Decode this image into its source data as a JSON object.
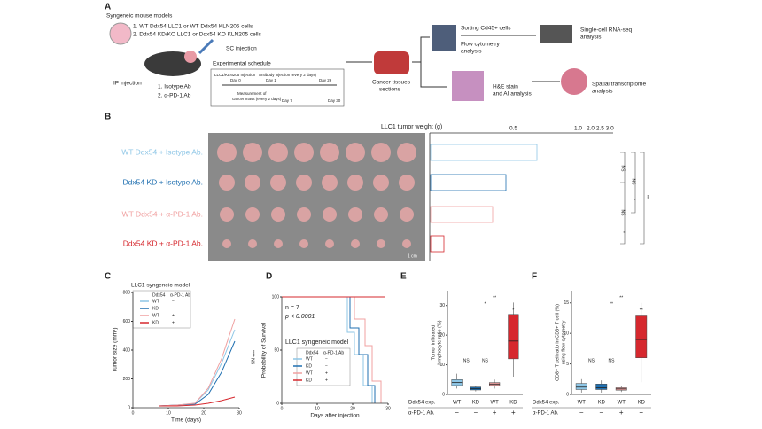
{
  "panel_a": {
    "label": "A",
    "models_title": "Syngeneic mouse models",
    "model_1": "1. WT Ddx54 LLC1 or WT Ddx54 KLN205 cells",
    "model_2": "2. Ddx54 KD/KO LLC1 or Ddx54 KO KLN205  cells",
    "sc_injection": "SC injection",
    "ip_injection": "IP injection",
    "ab_1": "1. Isotype Ab",
    "ab_2": "2. α-PD-1 Ab",
    "schedule_title": "Experimental schedule",
    "schedule_injection": "LLC1/KLN205 Injection",
    "schedule_antibody": "Antibody injection (every 2 days)",
    "day0": "Day 0",
    "day1": "Day 1",
    "day29": "Day 29",
    "measurement": "Measurement of",
    "measurement_2": "cancer mass (every 2 days)",
    "day7": "Day 7",
    "day30": "Day 30",
    "tissues": "Cancer tissues",
    "tissues_2": "sections",
    "sorting": "Sorting Cd45+ cells",
    "flow": "Flow cytometry",
    "flow_2": "analysis",
    "scrna": "Single-cell RNA-seq",
    "scrna_2": "analysis",
    "he": "H&E stain",
    "he_2": "and AI analysis",
    "spatial": "Spatial transcriptome",
    "spatial_2": "analysis"
  },
  "panel_b": {
    "label": "B",
    "groups": [
      {
        "name": "WT Ddx54 + Isotype Ab.",
        "color": "#8ec6e6"
      },
      {
        "name": "Ddx54 KD + Isotype Ab.",
        "color": "#1f6fb0"
      },
      {
        "name": "WT Ddx54 + α-PD-1 Ab.",
        "color": "#f0a0a0"
      },
      {
        "name": "Ddx54 KD + α-PD-1 Ab.",
        "color": "#d6282e"
      }
    ],
    "chart_title": "LLC1 tumor weight (g)",
    "tick_1": "0.5",
    "tick_2": "1.0",
    "tick_3": "2.0 2.5 3.0",
    "scale": "1 cm",
    "sig": [
      "NS",
      "NS",
      "NS",
      "*",
      "*",
      "**"
    ]
  },
  "panel_c": {
    "label": "C",
    "title": "LLC1 syngeneic model",
    "legend_h1": "Ddx54",
    "legend_h2": "α-PD-1 Ab",
    "legend": [
      [
        "WT",
        "−"
      ],
      [
        "KD",
        "−"
      ],
      [
        "WT",
        "+"
      ],
      [
        "KD",
        "+"
      ]
    ],
    "yticks": [
      0,
      200,
      400,
      600,
      800
    ],
    "xticks": [
      0,
      10,
      20,
      30
    ],
    "ylabel": "Tumor size (mm³)",
    "xlabel": "Time (days)"
  },
  "panel_d": {
    "label": "D",
    "n": "n = 7",
    "p": "p < 0.0001",
    "title": "LLC1 syngeneic model",
    "legend_h1": "Ddx54",
    "legend_h2": "α-PD-1 Ab",
    "legend": [
      [
        "WT",
        "−"
      ],
      [
        "KD",
        "−"
      ],
      [
        "WT",
        "+"
      ],
      [
        "KD",
        "+"
      ]
    ],
    "yticks": [
      0,
      50,
      100
    ],
    "xticks": [
      0,
      10,
      20,
      30
    ],
    "ylabel": "Probability of Survival",
    "xlabel": "Days after injection"
  },
  "panel_e": {
    "label": "E",
    "ylabel": "Tumor infiltrated",
    "ylabel_2": "lymphocyte ratio (%)",
    "ylim": [
      0,
      35
    ],
    "yticks": [
      0,
      10,
      20,
      30
    ],
    "row_1": "Ddx54 exp.",
    "row_2": "α-PD-1 Ab.",
    "groups": [
      "WT",
      "KD",
      "WT",
      "KD"
    ],
    "ab": [
      "−",
      "−",
      "+",
      "+"
    ],
    "boxes": [
      {
        "low": 2,
        "q1": 3,
        "median": 4,
        "q3": 5,
        "high": 7
      },
      {
        "low": 1,
        "q1": 1.5,
        "median": 2,
        "q3": 2.5,
        "high": 3
      },
      {
        "low": 2,
        "q1": 3,
        "median": 3.5,
        "q3": 4,
        "high": 5
      },
      {
        "low": 6,
        "q1": 12,
        "median": 18,
        "q3": 27,
        "high": 31
      }
    ],
    "colors": [
      "#8ec6e6",
      "#1f6fb0",
      "#f0a0a0",
      "#d6282e"
    ],
    "sig": [
      "NS",
      "NS",
      "*",
      "**",
      "*"
    ]
  },
  "panel_f": {
    "label": "F",
    "ylabel": "CD8+ T cell ratio in CD3+ T cell (%)",
    "ylabel_2": "using flow cytometry",
    "ylim": [
      0,
      17
    ],
    "yticks": [
      0,
      5,
      10,
      15
    ],
    "row_1": "Ddx54 exp.",
    "row_2": "α-PD-1 Ab.",
    "groups": [
      "WT",
      "KD",
      "WT",
      "KD"
    ],
    "ab": [
      "−",
      "−",
      "+",
      "+"
    ],
    "boxes": [
      {
        "low": 0.3,
        "q1": 0.8,
        "median": 1.2,
        "q3": 1.8,
        "high": 2.5
      },
      {
        "low": 0.3,
        "q1": 0.8,
        "median": 1.1,
        "q3": 1.7,
        "high": 2.3
      },
      {
        "low": 0.4,
        "q1": 0.7,
        "median": 0.9,
        "q3": 1.1,
        "high": 1.4
      },
      {
        "low": 2,
        "q1": 6,
        "median": 9,
        "q3": 13,
        "high": 15
      }
    ],
    "colors": [
      "#8ec6e6",
      "#1f6fb0",
      "#f0a0a0",
      "#d6282e"
    ],
    "sig": [
      "NS",
      "NS",
      "**",
      "**",
      "**"
    ]
  }
}
